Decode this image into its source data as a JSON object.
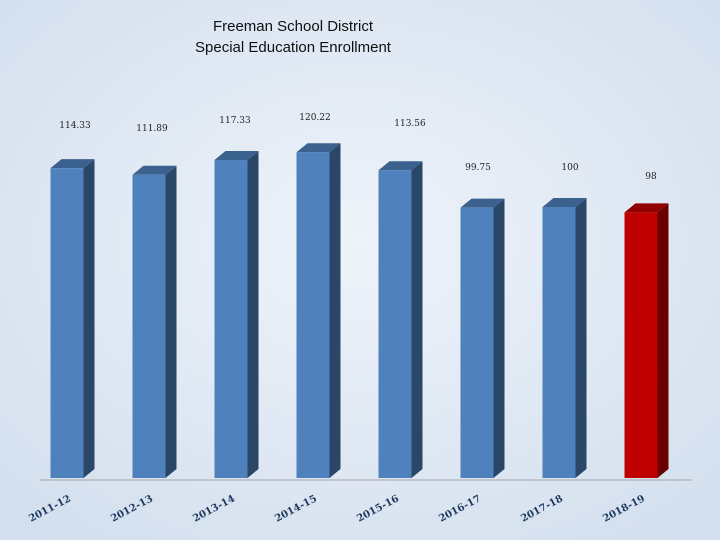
{
  "chart_data": {
    "type": "bar3d",
    "title": "Freeman School District",
    "subtitle": "Special Education Enrollment",
    "categories": [
      "2011-12",
      "2012-13",
      "2013-14",
      "2014-15",
      "2015-16",
      "2016-17",
      "2017-18",
      "2018-19"
    ],
    "values": [
      114.33,
      111.89,
      117.33,
      120.22,
      113.56,
      99.75,
      100,
      98
    ],
    "colors": [
      "#4f81bd",
      "#4f81bd",
      "#4f81bd",
      "#4f81bd",
      "#4f81bd",
      "#4f81bd",
      "#4f81bd",
      "#c00000"
    ]
  }
}
